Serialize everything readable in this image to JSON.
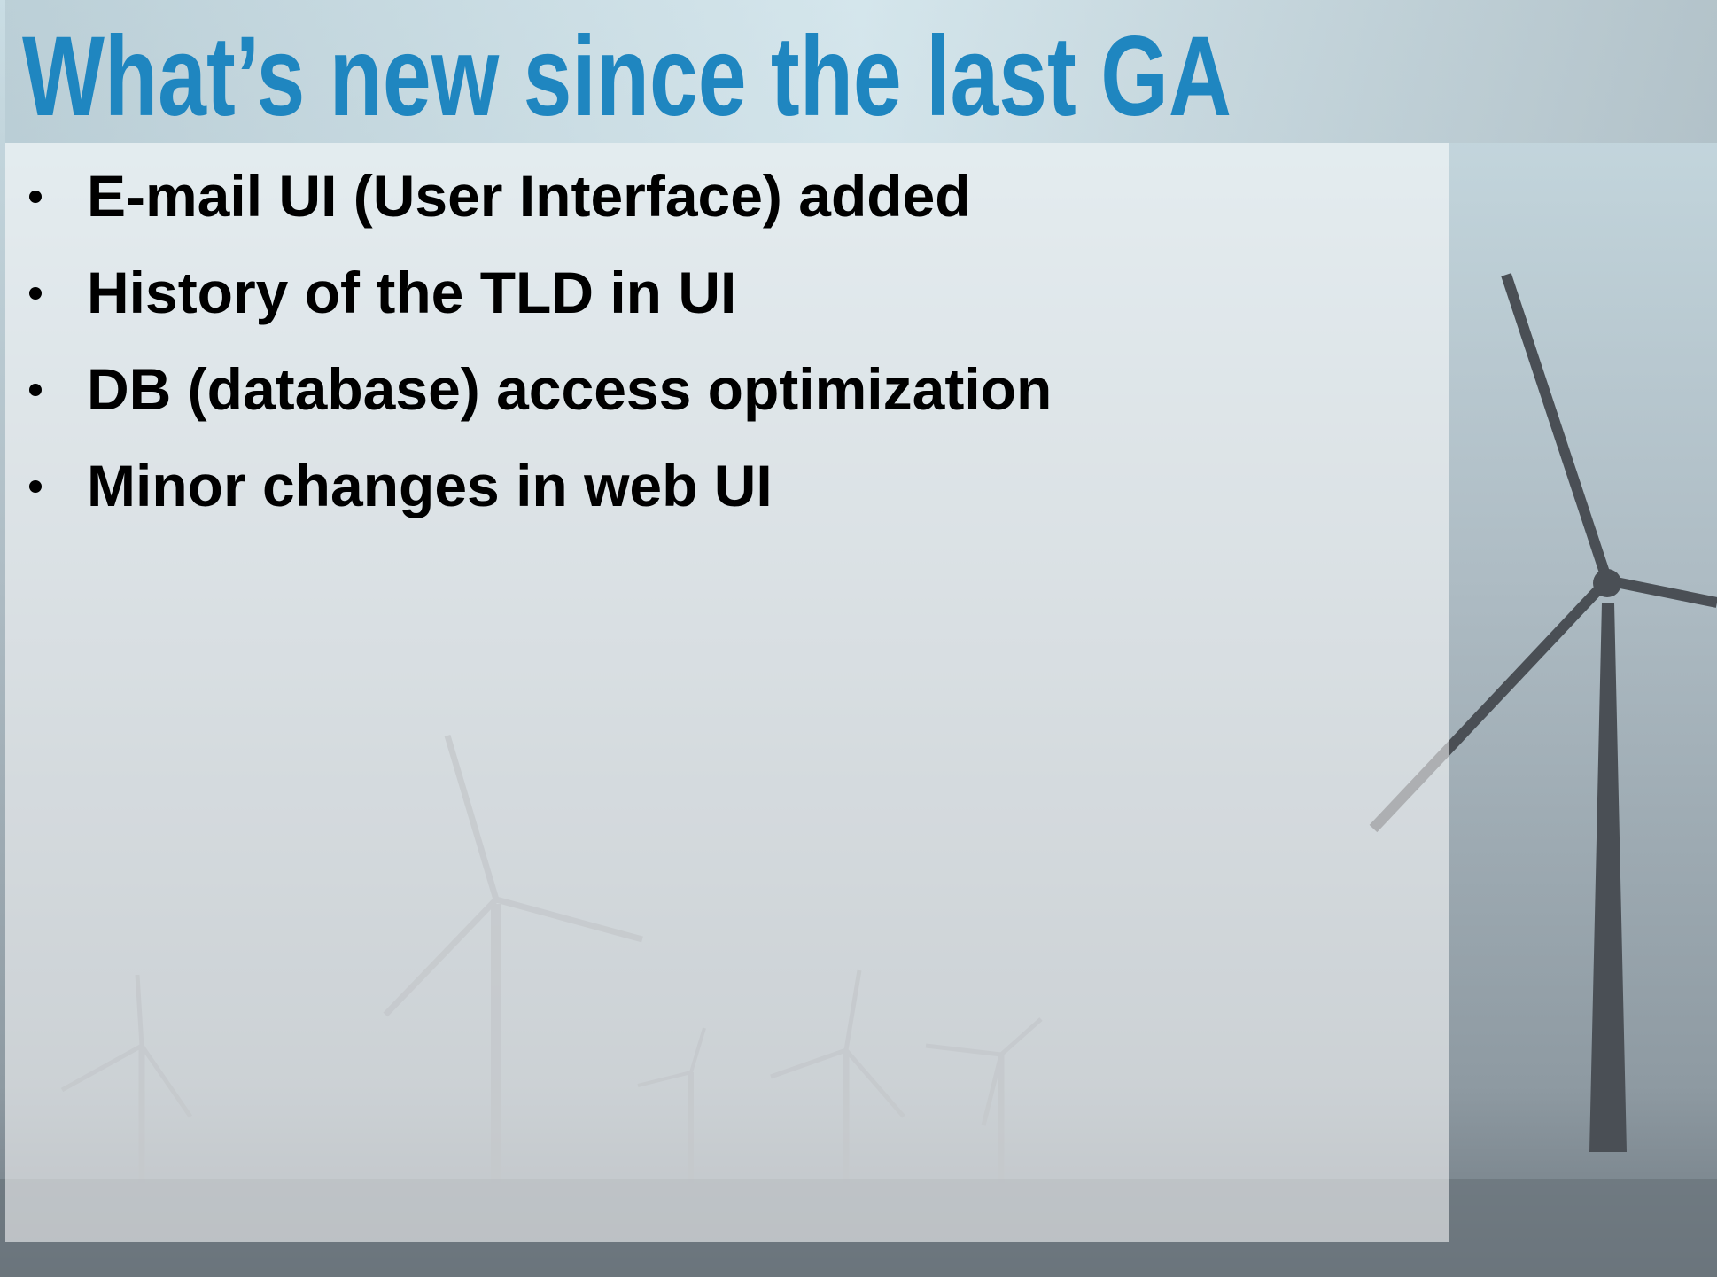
{
  "title": "What’s new since the last GA",
  "bullets": [
    "E-mail UI (User Interface) added",
    "History of the TLD in UI",
    "DB (database) access optimization",
    "Minor changes in web UI"
  ]
}
